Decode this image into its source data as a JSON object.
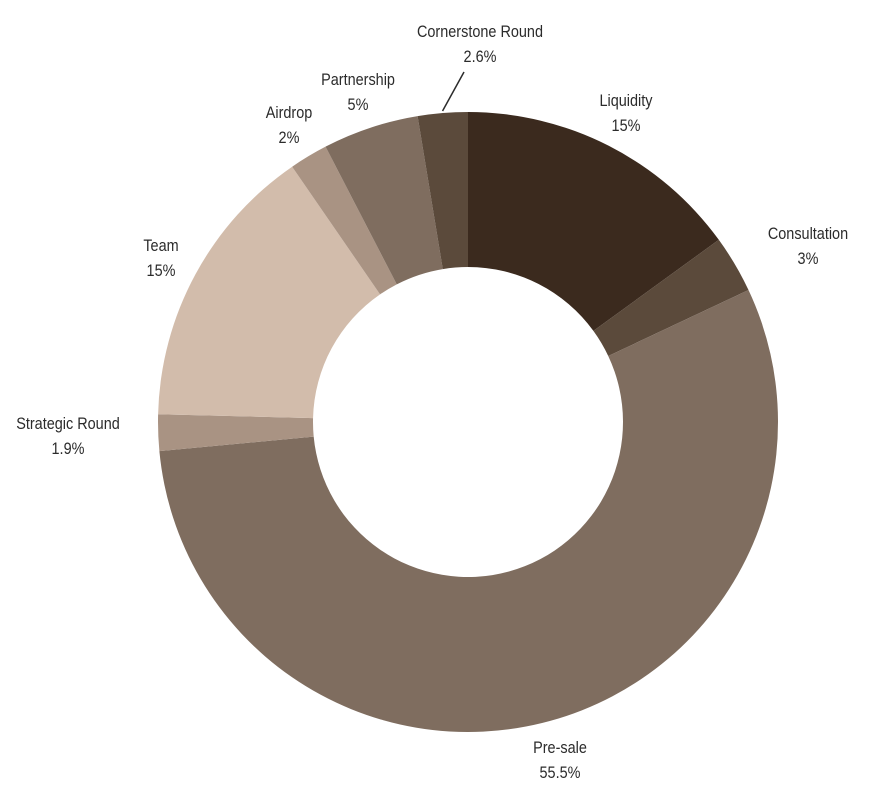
{
  "chart_data": {
    "type": "pie",
    "donut": true,
    "start_angle_deg": 0,
    "direction": "clockwise",
    "slices": [
      {
        "label": "Liquidity",
        "value": 15,
        "value_label": "15%",
        "color": "#3b2a1e"
      },
      {
        "label": "Consultation",
        "value": 3,
        "value_label": "3%",
        "color": "#5b4a3b"
      },
      {
        "label": "Pre-sale",
        "value": 55.5,
        "value_label": "55.5%",
        "color": "#7f6d5f"
      },
      {
        "label": "Strategic Round",
        "value": 1.9,
        "value_label": "1.9%",
        "color": "#a99383"
      },
      {
        "label": "Team",
        "value": 15,
        "value_label": "15%",
        "color": "#d2bcab"
      },
      {
        "label": "Airdrop",
        "value": 2,
        "value_label": "2%",
        "color": "#a99383"
      },
      {
        "label": "Partnership",
        "value": 5,
        "value_label": "5%",
        "color": "#7f6d5f"
      },
      {
        "label": "Cornerstone Round",
        "value": 2.6,
        "value_label": "2.6%",
        "color": "#5b4a3b"
      }
    ]
  }
}
